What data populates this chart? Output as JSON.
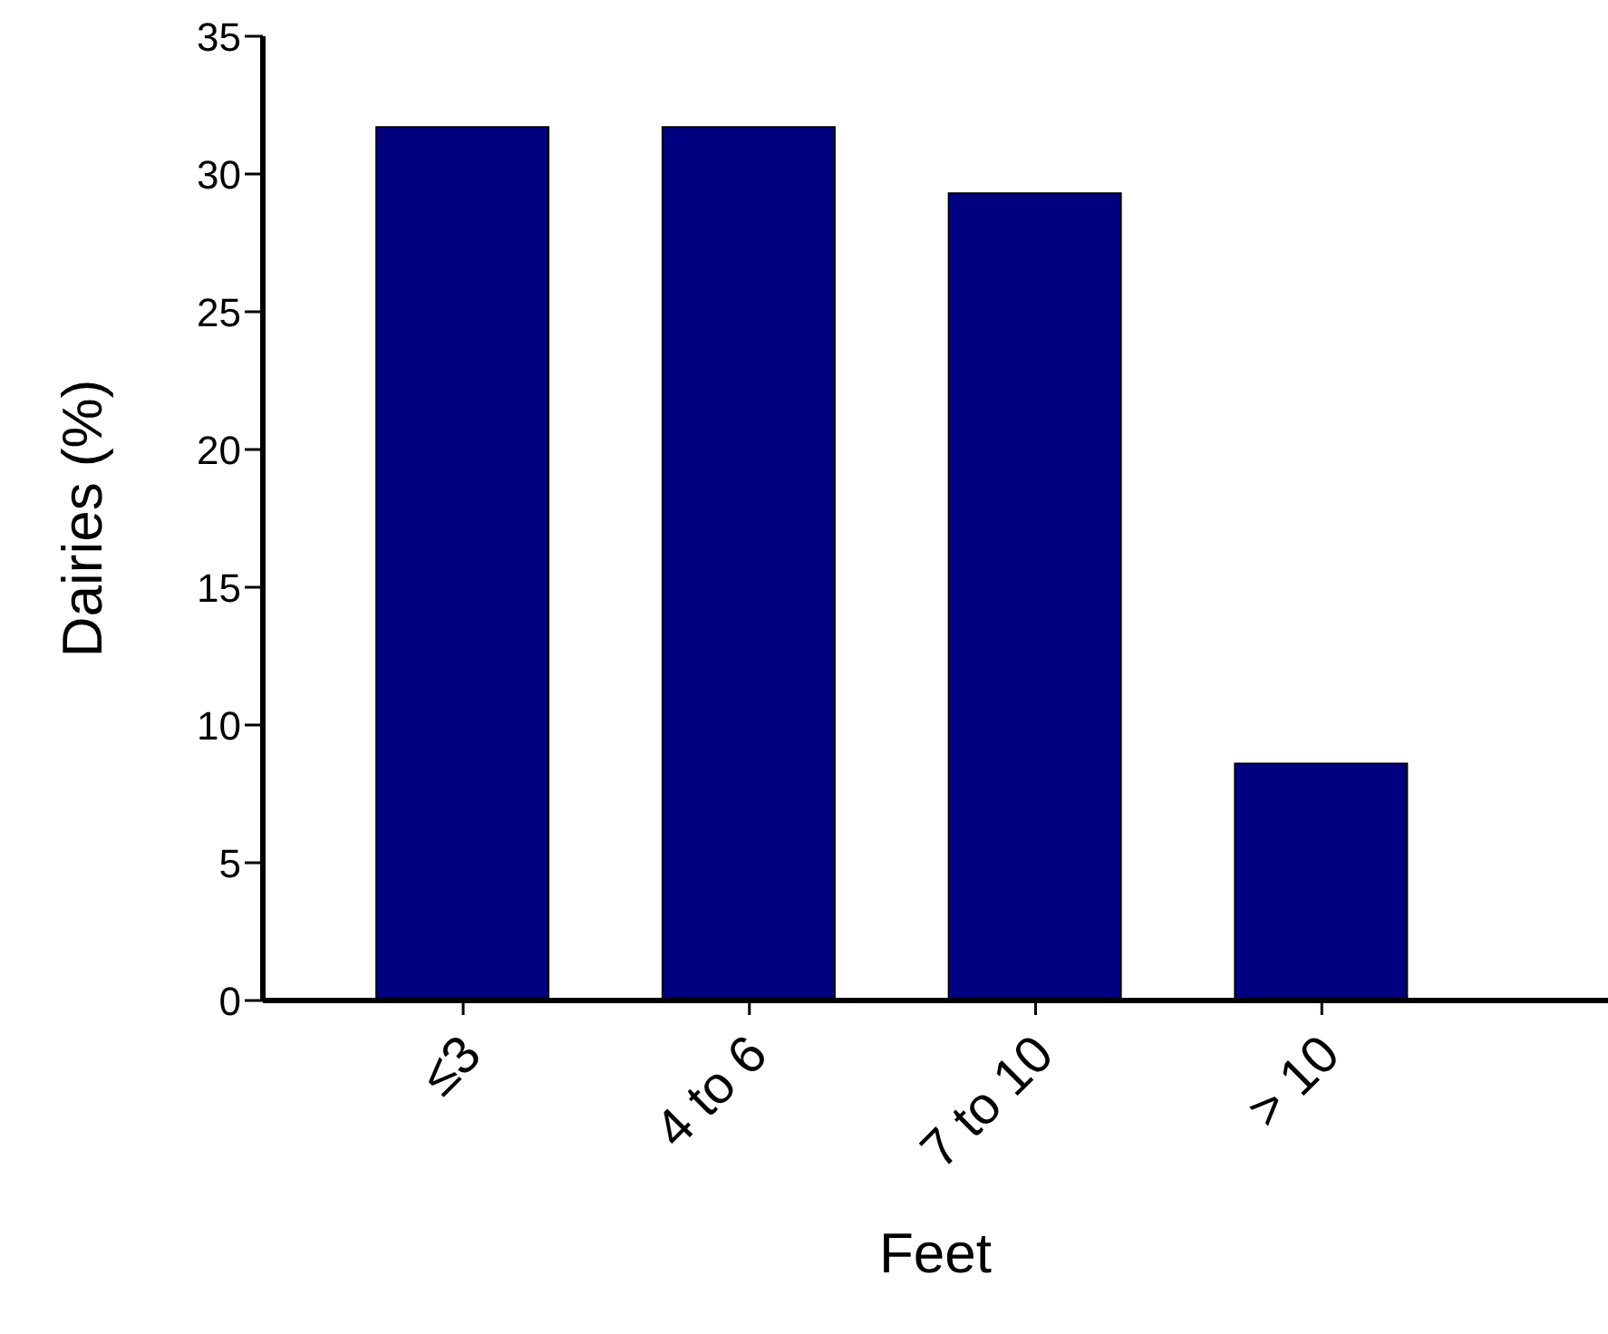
{
  "chart_data": {
    "type": "bar",
    "xlabel": "Feet",
    "ylabel": "Dairies (%)",
    "categories": [
      "≤3",
      "4 to 6",
      "7 to 10",
      "> 10"
    ],
    "values": [
      31.7,
      31.7,
      29.3,
      8.6
    ],
    "color": "#000080",
    "ylim": [
      0,
      35
    ],
    "yticks": [
      0,
      5,
      10,
      15,
      20,
      25,
      30,
      35
    ],
    "grid": false,
    "legend": false
  }
}
